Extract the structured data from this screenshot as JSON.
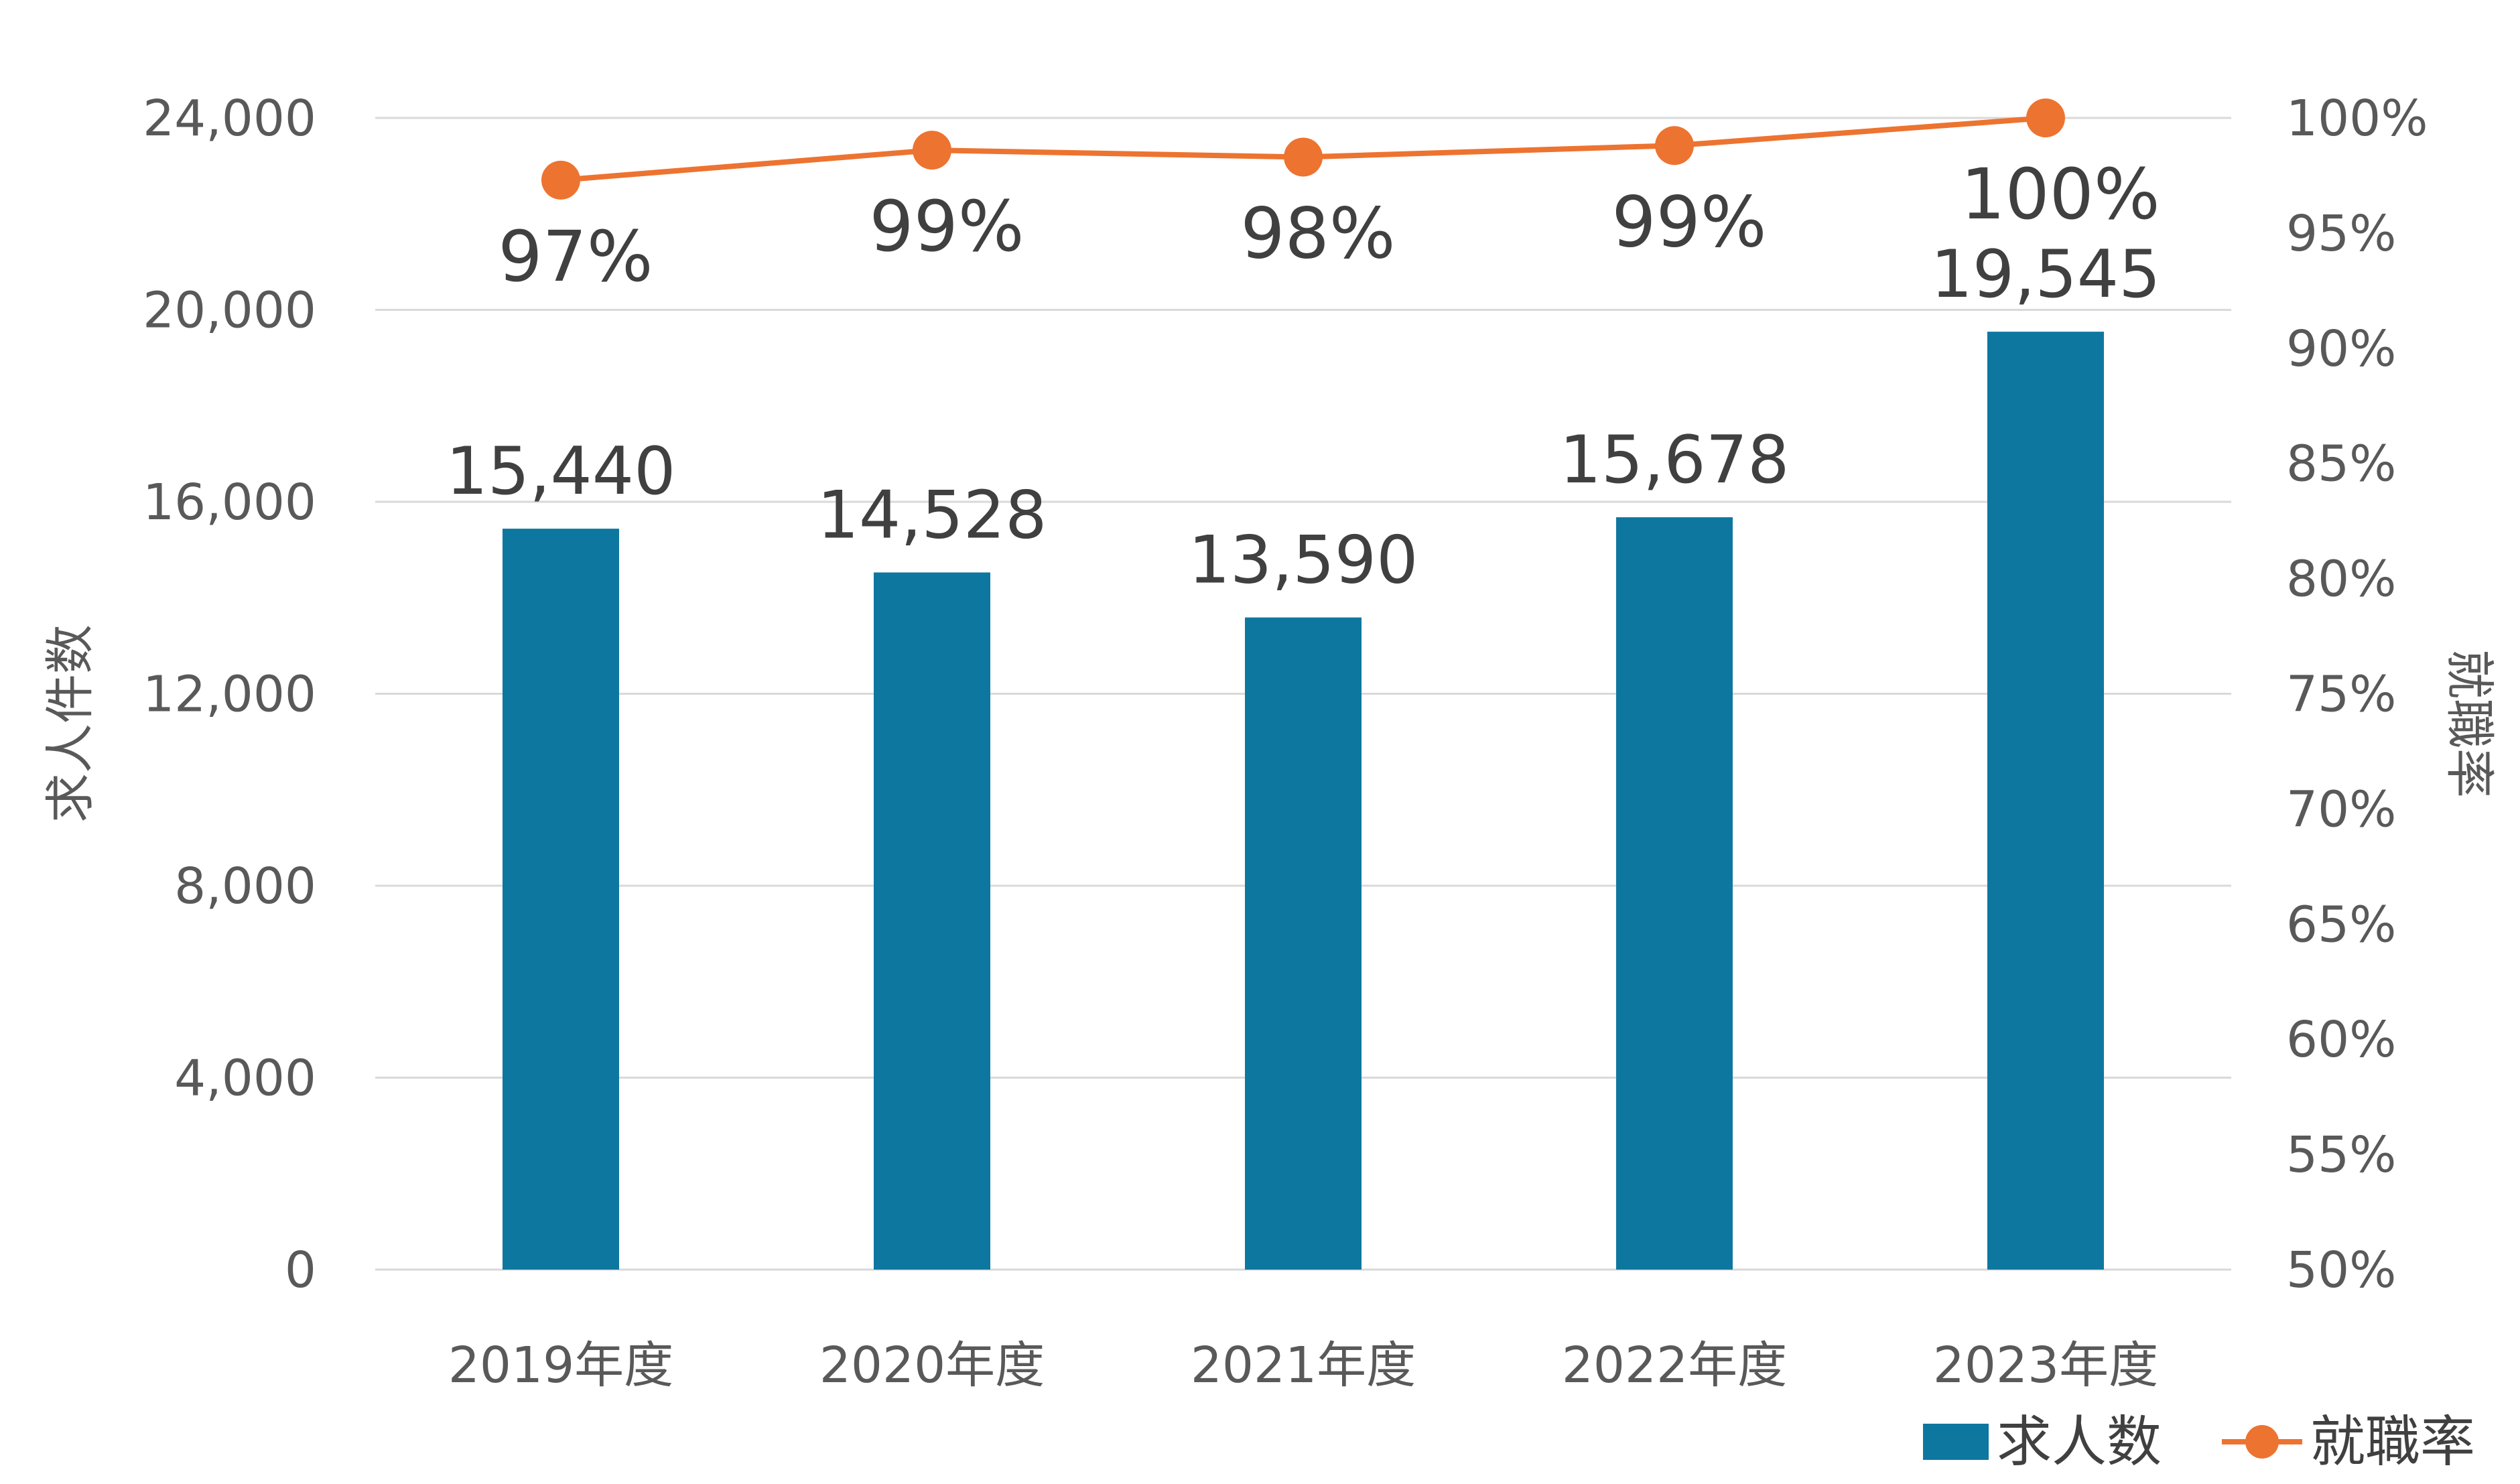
{
  "chart_data": {
    "type": "bar",
    "categories": [
      "2019年度",
      "2020年度",
      "2021年度",
      "2022年度",
      "2023年度"
    ],
    "series": [
      {
        "name": "求人数",
        "type": "bar",
        "axis": "left",
        "color": "#0e77a0",
        "values": [
          15440,
          14528,
          13590,
          15678,
          19545
        ],
        "labels": [
          "15,440",
          "14,528",
          "13,590",
          "15,678",
          "19,545"
        ]
      },
      {
        "name": "就職率",
        "type": "line",
        "axis": "right",
        "color": "#ed7330",
        "values": [
          97.3,
          98.6,
          98.3,
          98.8,
          100
        ],
        "labels": [
          "97%",
          "99%",
          "98%",
          "99%",
          "100%"
        ]
      }
    ],
    "y_left": {
      "label": "求人件数",
      "lim": [
        0,
        24000
      ],
      "ticks": [
        0,
        4000,
        8000,
        12000,
        16000,
        20000,
        24000
      ],
      "tick_labels": [
        "0",
        "4,000",
        "8,000",
        "12,000",
        "16,000",
        "20,000",
        "24,000"
      ]
    },
    "y_right": {
      "label": "就職率",
      "lim": [
        50,
        100
      ],
      "ticks": [
        50,
        55,
        60,
        65,
        70,
        75,
        80,
        85,
        90,
        95,
        100
      ],
      "tick_labels": [
        "50%",
        "55%",
        "60%",
        "65%",
        "70%",
        "75%",
        "80%",
        "85%",
        "90%",
        "95%",
        "100%"
      ]
    },
    "grid": true,
    "legend": {
      "position": "bottom-right",
      "items": [
        "求人数",
        "就職率"
      ]
    }
  }
}
